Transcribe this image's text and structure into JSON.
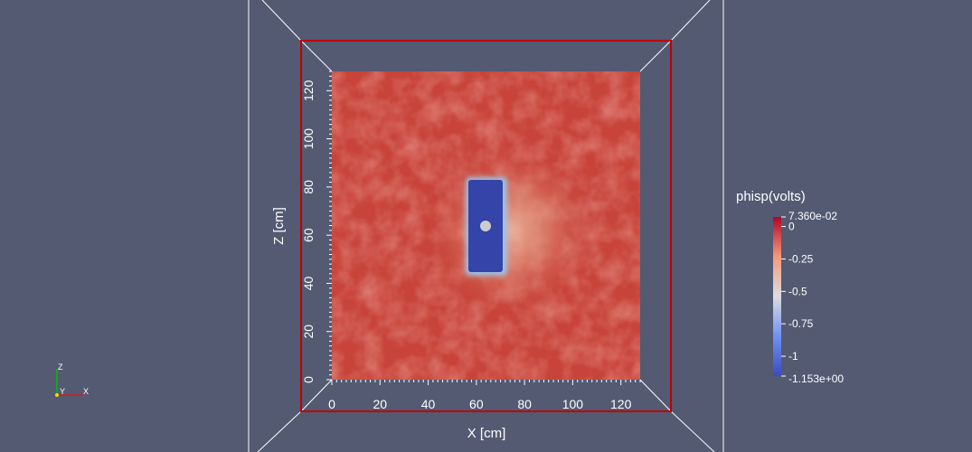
{
  "field": {
    "name": "phisp(volts)",
    "colormap": "Cool to Warm",
    "range": {
      "min_label": "-1.153e+00",
      "max_label": "7.360e-02"
    },
    "colorbar_ticks": [
      "0",
      "-0.25",
      "-0.5",
      "-0.75",
      "-1"
    ],
    "colors": {
      "low": "#3b4cc0",
      "mid": "#dddddd",
      "high": "#b40426",
      "field_base": "#c8443a"
    }
  },
  "x_axis": {
    "title": "X [cm]",
    "ticks": [
      "0",
      "20",
      "40",
      "60",
      "80",
      "100",
      "120"
    ]
  },
  "z_axis": {
    "title": "Z [cm]",
    "ticks": [
      "0",
      "20",
      "40",
      "60",
      "80",
      "100",
      "120"
    ]
  },
  "orientation": {
    "z": "Z",
    "y": "Y",
    "x": "X"
  },
  "colors": {
    "background": "#535a72",
    "outline_box": "#c00000",
    "wireframe": "#ffffff",
    "electrode": "#3444a8",
    "probe_dot": "#cccccc"
  }
}
